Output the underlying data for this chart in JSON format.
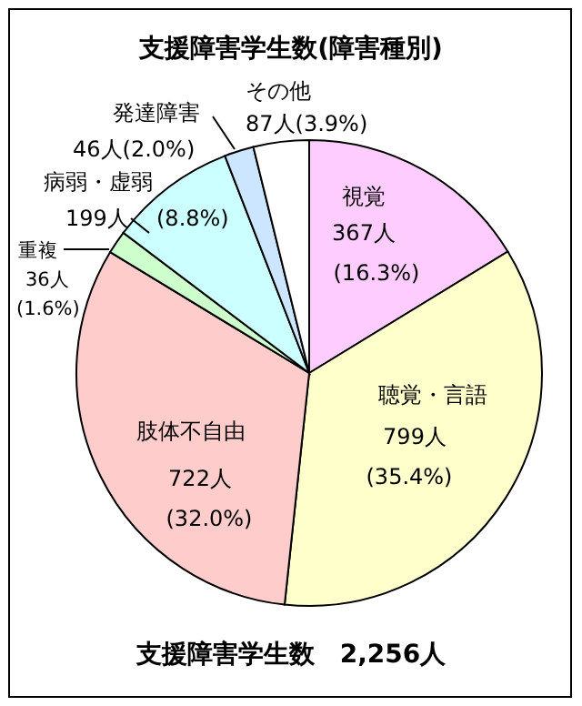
{
  "chart_data": {
    "type": "pie",
    "title": "支援障害学生数(障害種別)",
    "categories": [
      "視覚",
      "聴覚・言語",
      "肢体不自由",
      "重複",
      "病弱・虚弱",
      "発達障害",
      "その他"
    ],
    "values": [
      367,
      799,
      722,
      36,
      199,
      46,
      87
    ],
    "value_labels": [
      "367人 (16.3%)",
      "799人 (35.4%)",
      "722人 (32.0%)",
      "36人 (1.6%)",
      "199人 (8.8%)",
      "46人(2.0%)",
      "87人(3.9%)"
    ],
    "colors": [
      "#ffccff",
      "#ffffcc",
      "#ffcccc",
      "#ccffcc",
      "#ccffff",
      "#cce6ff",
      "#ffffff"
    ],
    "annotations": [
      "支援障害学生数　2,256人"
    ]
  }
}
